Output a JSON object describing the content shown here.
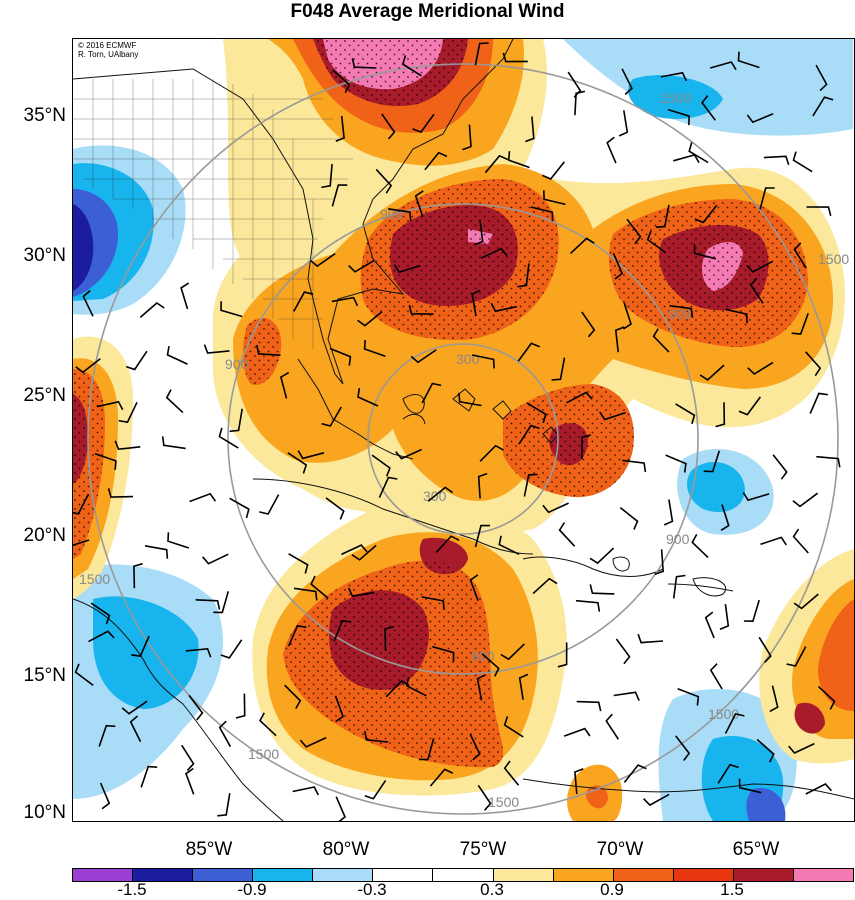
{
  "title": "F048 Average Meridional Wind",
  "credit": {
    "line1": "© 2016 ECMWF",
    "line2": "R. Torn, UAlbany"
  },
  "map": {
    "lat_labels": [
      "35°N",
      "30°N",
      "25°N",
      "20°N",
      "15°N",
      "10°N"
    ],
    "lon_labels": [
      "85°W",
      "80°W",
      "75°W",
      "70°W",
      "65°W"
    ],
    "range_ring_labels": [
      "300",
      "300",
      "900",
      "900",
      "900",
      "900",
      "900",
      "1500",
      "1500",
      "1500",
      "1500",
      "1500",
      "1500"
    ],
    "extent": {
      "lon": [
        -90,
        -62
      ],
      "lat": [
        10,
        37.5
      ]
    }
  },
  "colorbar": {
    "colors": [
      "#9a3fd1",
      "#1c1ca0",
      "#3c5fd6",
      "#18b4ee",
      "#a9dcf7",
      "#ffffff",
      "#ffffff",
      "#fbe89a",
      "#f9a51f",
      "#f06218",
      "#e8360f",
      "#a81b2a",
      "#f57ab3"
    ],
    "labels": [
      "-1.5",
      "-0.9",
      "-0.3",
      "0.3",
      "0.9",
      "1.5"
    ]
  },
  "legend_meaning": {
    "shading": "meridional wind anomaly (m/s)",
    "barbs": "wind barbs",
    "gray_rings": "distance rings"
  }
}
